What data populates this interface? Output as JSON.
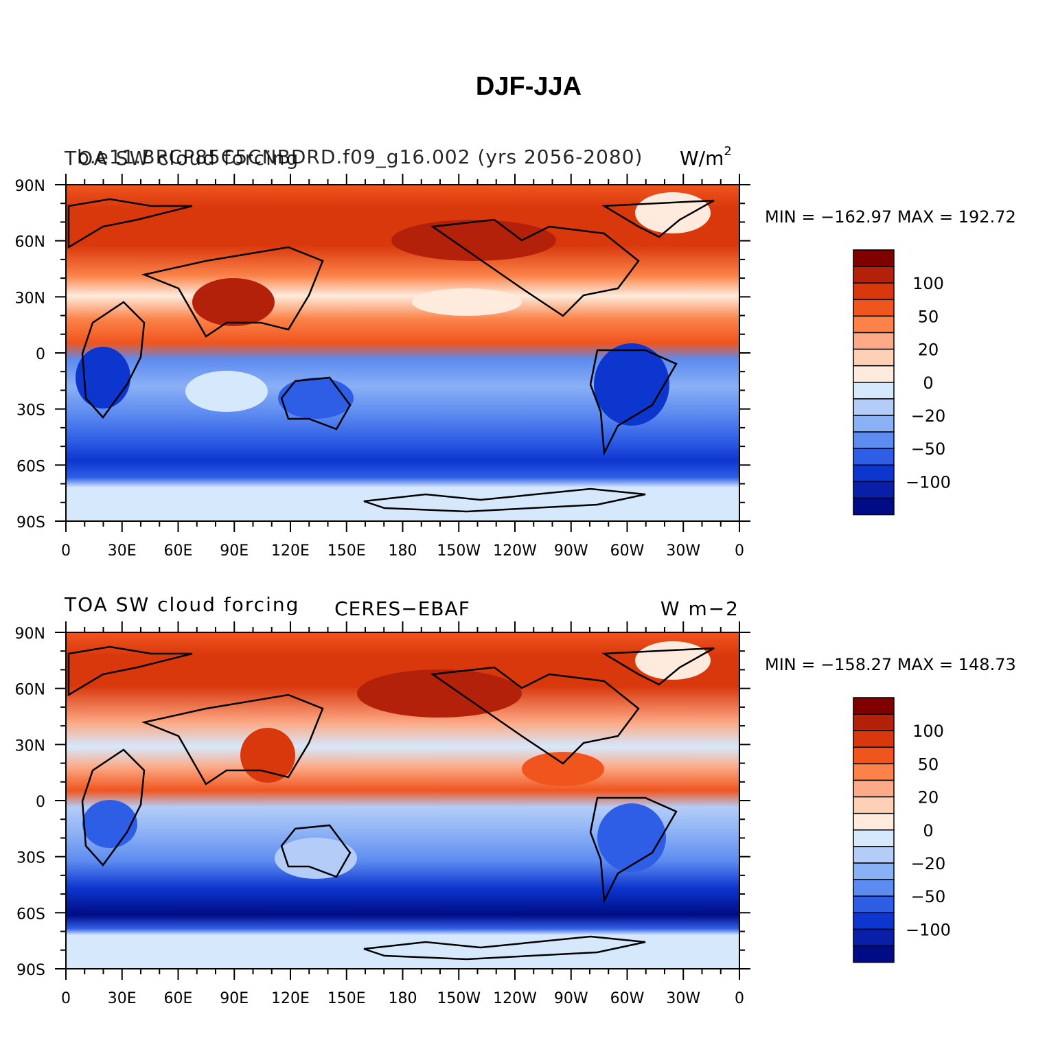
{
  "figure": {
    "title": "DJF-JJA"
  },
  "panels": [
    {
      "left_title_a": "TOA SW cloud forcing",
      "left_title_b": "b.e11.BRCP85C5CNBDRD.f09_g16.002 (yrs 2056-2080)",
      "center_title": "",
      "units_text": "W/m",
      "units_sup": "2",
      "stats": "MIN = −162.97  MAX = 192.72"
    },
    {
      "left_title_a": "TOA SW cloud forcing",
      "left_title_b": "",
      "center_title": "CERES−EBAF",
      "units_text": "W m−2",
      "units_sup": "",
      "stats": "MIN = −158.27  MAX = 148.73"
    }
  ],
  "axes": {
    "lat_labels": [
      "90N",
      "60N",
      "30N",
      "0",
      "30S",
      "60S",
      "90S"
    ],
    "lon_labels": [
      "0",
      "30E",
      "60E",
      "90E",
      "120E",
      "150E",
      "180",
      "150W",
      "120W",
      "90W",
      "60W",
      "30W",
      "0"
    ]
  },
  "colorbar": {
    "colors": [
      "#800000",
      "#b4210b",
      "#d9380c",
      "#f0551e",
      "#fb8248",
      "#fcaa88",
      "#fed1b6",
      "#feebdd",
      "#d6e8fc",
      "#b3cdf8",
      "#8ab0f5",
      "#5d8bf0",
      "#2f5ee6",
      "#0d36cf",
      "#0a1fa8",
      "#000c85"
    ],
    "labels": [
      "100",
      "50",
      "20",
      "0",
      "−20",
      "−50",
      "−100"
    ],
    "label_color_index": [
      1,
      3,
      5,
      7,
      9,
      11,
      13
    ]
  },
  "colors": {
    "ocean_warm": "#f0551e",
    "ocean_cool": "#5d8bf0",
    "coast": "#000000"
  }
}
